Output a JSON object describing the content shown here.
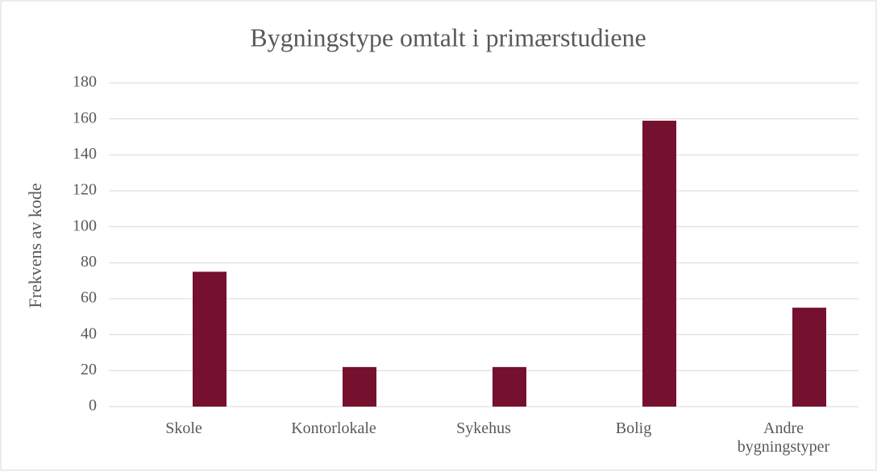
{
  "chart_data": {
    "type": "bar",
    "title": "Bygningstype omtalt i primærstudiene",
    "y_label": "Frekvens av kode",
    "categories": [
      "Skole",
      "Kontorlokale",
      "Sykehus",
      "Bolig",
      "Andre bygningstyper"
    ],
    "values": [
      75,
      22,
      22,
      159,
      55
    ],
    "color": "#75102f",
    "ylim": [
      0,
      180
    ],
    "yticks": [
      0,
      20,
      40,
      60,
      80,
      100,
      120,
      140,
      160,
      180
    ],
    "grid": true
  }
}
